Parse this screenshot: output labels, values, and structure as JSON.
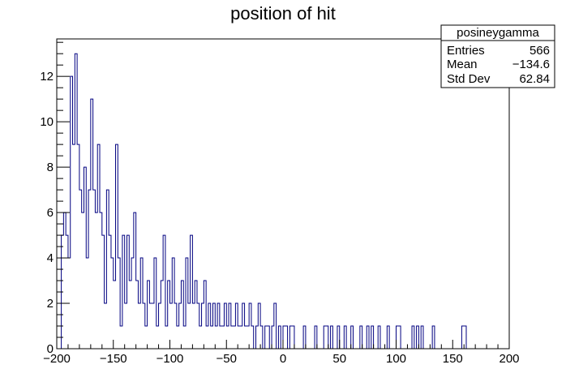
{
  "chart_data": {
    "type": "bar",
    "title": "position of hit",
    "xlabel": "",
    "ylabel": "",
    "xlim": [
      -200,
      200
    ],
    "ylim": [
      0,
      13.65
    ],
    "bin_width": 2,
    "grid": false,
    "x_ticks": [
      -200,
      -150,
      -100,
      -50,
      0,
      50,
      100,
      150,
      200
    ],
    "x_tick_labels": [
      "−200",
      "−150",
      "−100",
      "−50",
      "0",
      "50",
      "100",
      "150",
      "200"
    ],
    "y_ticks": [
      0,
      2,
      4,
      6,
      8,
      10,
      12
    ],
    "y_tick_labels": [
      "0",
      "2",
      "4",
      "6",
      "8",
      "10",
      "12"
    ],
    "stats_box": {
      "name": "posineygamma",
      "placement": "top-right",
      "rows": [
        {
          "label": "Entries",
          "value": "566"
        },
        {
          "label": "Mean",
          "value": "−134.6"
        },
        {
          "label": "Std Dev",
          "value": "62.84"
        }
      ]
    },
    "bins": [
      [
        -196,
        5
      ],
      [
        -194,
        6
      ],
      [
        -192,
        5
      ],
      [
        -190,
        4
      ],
      [
        -188,
        12
      ],
      [
        -186,
        9
      ],
      [
        -184,
        13
      ],
      [
        -182,
        9
      ],
      [
        -180,
        7
      ],
      [
        -178,
        6
      ],
      [
        -176,
        8
      ],
      [
        -174,
        4
      ],
      [
        -172,
        7
      ],
      [
        -170,
        11
      ],
      [
        -168,
        7
      ],
      [
        -166,
        6
      ],
      [
        -164,
        9
      ],
      [
        -162,
        6
      ],
      [
        -160,
        5
      ],
      [
        -158,
        2
      ],
      [
        -156,
        7
      ],
      [
        -154,
        5
      ],
      [
        -152,
        4
      ],
      [
        -150,
        3
      ],
      [
        -148,
        9
      ],
      [
        -146,
        4
      ],
      [
        -144,
        1
      ],
      [
        -142,
        5
      ],
      [
        -140,
        2
      ],
      [
        -138,
        5
      ],
      [
        -136,
        3
      ],
      [
        -134,
        4
      ],
      [
        -132,
        6
      ],
      [
        -130,
        3
      ],
      [
        -128,
        2
      ],
      [
        -126,
        4
      ],
      [
        -124,
        2
      ],
      [
        -122,
        1
      ],
      [
        -120,
        3
      ],
      [
        -118,
        2
      ],
      [
        -116,
        2
      ],
      [
        -114,
        4
      ],
      [
        -112,
        1
      ],
      [
        -110,
        2
      ],
      [
        -108,
        3
      ],
      [
        -106,
        5
      ],
      [
        -104,
        1
      ],
      [
        -102,
        3
      ],
      [
        -100,
        2
      ],
      [
        -98,
        4
      ],
      [
        -96,
        2
      ],
      [
        -94,
        1
      ],
      [
        -92,
        2
      ],
      [
        -90,
        3
      ],
      [
        -88,
        1
      ],
      [
        -86,
        4
      ],
      [
        -84,
        2
      ],
      [
        -82,
        5
      ],
      [
        -80,
        2
      ],
      [
        -78,
        3
      ],
      [
        -76,
        2
      ],
      [
        -74,
        1
      ],
      [
        -72,
        2
      ],
      [
        -70,
        3
      ],
      [
        -68,
        1
      ],
      [
        -66,
        2
      ],
      [
        -64,
        1
      ],
      [
        -62,
        2
      ],
      [
        -60,
        1
      ],
      [
        -58,
        2
      ],
      [
        -56,
        1
      ],
      [
        -54,
        1
      ],
      [
        -52,
        2
      ],
      [
        -50,
        1
      ],
      [
        -48,
        2
      ],
      [
        -46,
        1
      ],
      [
        -44,
        1
      ],
      [
        -42,
        2
      ],
      [
        -40,
        1
      ],
      [
        -38,
        1
      ],
      [
        -36,
        2
      ],
      [
        -34,
        1
      ],
      [
        -32,
        1
      ],
      [
        -30,
        2
      ],
      [
        -28,
        1
      ],
      [
        -24,
        1
      ],
      [
        -22,
        2
      ],
      [
        -20,
        1
      ],
      [
        -16,
        1
      ],
      [
        -14,
        1
      ],
      [
        -10,
        1
      ],
      [
        -8,
        2
      ],
      [
        -4,
        1
      ],
      [
        0,
        1
      ],
      [
        2,
        1
      ],
      [
        6,
        1
      ],
      [
        8,
        1
      ],
      [
        18,
        1
      ],
      [
        28,
        1
      ],
      [
        36,
        1
      ],
      [
        38,
        1
      ],
      [
        42,
        1
      ],
      [
        48,
        1
      ],
      [
        54,
        1
      ],
      [
        60,
        1
      ],
      [
        68,
        1
      ],
      [
        74,
        1
      ],
      [
        78,
        1
      ],
      [
        84,
        1
      ],
      [
        92,
        1
      ],
      [
        100,
        1
      ],
      [
        102,
        1
      ],
      [
        114,
        1
      ],
      [
        118,
        1
      ],
      [
        122,
        1
      ],
      [
        132,
        1
      ],
      [
        158,
        1
      ],
      [
        160,
        1
      ]
    ]
  }
}
